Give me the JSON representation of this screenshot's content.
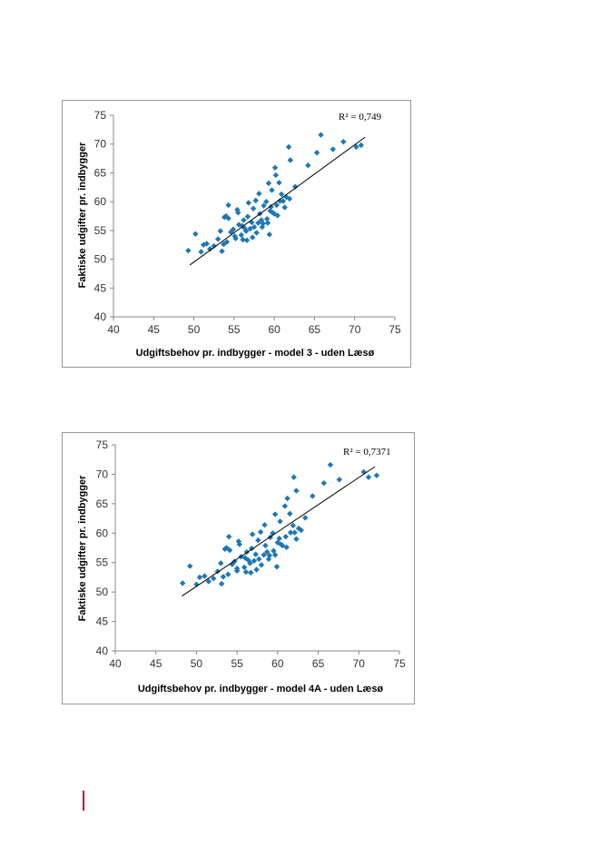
{
  "colors": {
    "points": "#1f77b4",
    "trendline": "#000000",
    "axis": "#888888",
    "accent": "#c0121b"
  },
  "chart_data": [
    {
      "type": "scatter",
      "title": "",
      "xlabel": "Udgiftsbehov pr. indbygger - model 3 - uden Læsø",
      "ylabel": "Faktiske udgifter pr. indbygger",
      "annotation": "R² = 0,749",
      "xlim": [
        40,
        75
      ],
      "ylim": [
        40,
        75
      ],
      "x_ticks": [
        "40",
        "45",
        "50",
        "55",
        "60",
        "65",
        "70",
        "75"
      ],
      "y_ticks": [
        "40",
        "45",
        "50",
        "55",
        "60",
        "65",
        "70",
        "75"
      ],
      "trendline": {
        "x": [
          49.5,
          71.3
        ],
        "y": [
          49.0,
          71.2
        ]
      },
      "grid": false,
      "points": [
        [
          49.3,
          51.5
        ],
        [
          50.2,
          54.4
        ],
        [
          50.9,
          51.3
        ],
        [
          51.2,
          52.5
        ],
        [
          51.6,
          52.7
        ],
        [
          52.0,
          51.8
        ],
        [
          52.5,
          52.3
        ],
        [
          53.0,
          53.5
        ],
        [
          53.3,
          54.9
        ],
        [
          53.7,
          52.6
        ],
        [
          53.5,
          51.4
        ],
        [
          53.8,
          57.3
        ],
        [
          54.0,
          57.5
        ],
        [
          54.3,
          57.1
        ],
        [
          54.3,
          59.4
        ],
        [
          54.1,
          53.0
        ],
        [
          54.6,
          54.7
        ],
        [
          54.9,
          55.2
        ],
        [
          55.1,
          54.0
        ],
        [
          55.2,
          53.6
        ],
        [
          55.6,
          56.0
        ],
        [
          55.5,
          58.1
        ],
        [
          55.4,
          58.6
        ],
        [
          56.0,
          55.8
        ],
        [
          55.9,
          54.2
        ],
        [
          56.1,
          53.4
        ],
        [
          56.2,
          56.8
        ],
        [
          56.3,
          55.4
        ],
        [
          56.5,
          54.9
        ],
        [
          56.6,
          53.3
        ],
        [
          56.7,
          57.4
        ],
        [
          56.8,
          59.8
        ],
        [
          57.0,
          55.3
        ],
        [
          57.2,
          56.4
        ],
        [
          57.3,
          53.8
        ],
        [
          57.4,
          58.8
        ],
        [
          57.5,
          55.6
        ],
        [
          57.7,
          60.2
        ],
        [
          57.8,
          54.6
        ],
        [
          58.0,
          56.3
        ],
        [
          58.1,
          61.4
        ],
        [
          58.2,
          57.9
        ],
        [
          58.4,
          56.8
        ],
        [
          58.5,
          55.6
        ],
        [
          58.6,
          56.2
        ],
        [
          58.7,
          59.3
        ],
        [
          59.0,
          60.0
        ],
        [
          59.1,
          57.0
        ],
        [
          59.2,
          56.3
        ],
        [
          59.3,
          63.2
        ],
        [
          59.4,
          54.3
        ],
        [
          59.5,
          58.4
        ],
        [
          59.6,
          59.1
        ],
        [
          59.7,
          62.0
        ],
        [
          59.8,
          58.1
        ],
        [
          60.0,
          57.9
        ],
        [
          60.1,
          65.9
        ],
        [
          60.2,
          64.6
        ],
        [
          60.3,
          59.4
        ],
        [
          60.4,
          57.6
        ],
        [
          60.6,
          63.3
        ],
        [
          60.7,
          60.1
        ],
        [
          60.9,
          61.3
        ],
        [
          61.1,
          60.1
        ],
        [
          61.3,
          59.0
        ],
        [
          61.5,
          60.8
        ],
        [
          61.8,
          69.5
        ],
        [
          61.9,
          60.5
        ],
        [
          62.0,
          67.2
        ],
        [
          62.6,
          62.6
        ],
        [
          64.2,
          66.3
        ],
        [
          65.3,
          68.5
        ],
        [
          65.8,
          71.6
        ],
        [
          67.3,
          69.1
        ],
        [
          68.6,
          70.4
        ],
        [
          70.2,
          69.5
        ],
        [
          70.8,
          69.8
        ]
      ]
    },
    {
      "type": "scatter",
      "title": "",
      "xlabel": "Udgiftsbehov pr. indbygger - model 4A - uden Læsø",
      "ylabel": "Faktiske udgifter pr. indbygger",
      "annotation": "R² = 0,7371",
      "xlim": [
        40,
        75
      ],
      "ylim": [
        40,
        75
      ],
      "x_ticks": [
        "40",
        "45",
        "50",
        "55",
        "60",
        "65",
        "70",
        "75"
      ],
      "y_ticks": [
        "40",
        "45",
        "50",
        "55",
        "60",
        "65",
        "70",
        "75"
      ],
      "trendline": {
        "x": [
          48.2,
          72.0
        ],
        "y": [
          49.3,
          71.3
        ]
      },
      "grid": false,
      "points": [
        [
          48.3,
          51.5
        ],
        [
          49.2,
          54.4
        ],
        [
          50.0,
          51.3
        ],
        [
          50.4,
          52.5
        ],
        [
          51.0,
          52.7
        ],
        [
          51.5,
          51.8
        ],
        [
          52.1,
          52.3
        ],
        [
          52.6,
          53.5
        ],
        [
          53.0,
          54.9
        ],
        [
          53.3,
          52.6
        ],
        [
          53.1,
          51.4
        ],
        [
          53.5,
          57.3
        ],
        [
          53.7,
          57.5
        ],
        [
          54.1,
          57.1
        ],
        [
          54.0,
          59.4
        ],
        [
          53.9,
          53.0
        ],
        [
          54.4,
          54.7
        ],
        [
          54.7,
          55.2
        ],
        [
          55.0,
          54.0
        ],
        [
          55.0,
          53.6
        ],
        [
          55.5,
          56.0
        ],
        [
          55.3,
          58.1
        ],
        [
          55.2,
          58.6
        ],
        [
          56.0,
          55.8
        ],
        [
          55.9,
          54.2
        ],
        [
          56.1,
          53.4
        ],
        [
          56.2,
          56.8
        ],
        [
          56.4,
          55.4
        ],
        [
          56.6,
          54.9
        ],
        [
          56.7,
          53.3
        ],
        [
          56.8,
          57.4
        ],
        [
          56.9,
          59.8
        ],
        [
          57.1,
          55.3
        ],
        [
          57.3,
          56.4
        ],
        [
          57.4,
          53.8
        ],
        [
          57.6,
          58.8
        ],
        [
          57.7,
          55.6
        ],
        [
          57.9,
          60.2
        ],
        [
          58.0,
          54.6
        ],
        [
          58.3,
          56.3
        ],
        [
          58.4,
          61.4
        ],
        [
          58.5,
          57.9
        ],
        [
          58.7,
          56.8
        ],
        [
          58.9,
          55.6
        ],
        [
          59.0,
          56.2
        ],
        [
          59.1,
          59.3
        ],
        [
          59.4,
          60.0
        ],
        [
          59.5,
          57.0
        ],
        [
          59.7,
          56.3
        ],
        [
          59.7,
          63.2
        ],
        [
          59.9,
          54.3
        ],
        [
          60.0,
          58.4
        ],
        [
          60.2,
          59.1
        ],
        [
          60.3,
          62.0
        ],
        [
          60.4,
          58.1
        ],
        [
          60.6,
          57.9
        ],
        [
          61.2,
          65.9
        ],
        [
          60.9,
          64.6
        ],
        [
          61.0,
          59.4
        ],
        [
          61.1,
          57.6
        ],
        [
          61.5,
          63.3
        ],
        [
          61.6,
          60.1
        ],
        [
          61.9,
          61.3
        ],
        [
          62.1,
          60.1
        ],
        [
          62.3,
          59.0
        ],
        [
          62.6,
          60.8
        ],
        [
          62.0,
          69.5
        ],
        [
          62.9,
          60.5
        ],
        [
          62.3,
          67.2
        ],
        [
          63.4,
          62.6
        ],
        [
          64.3,
          66.3
        ],
        [
          65.7,
          68.5
        ],
        [
          66.5,
          71.6
        ],
        [
          67.6,
          69.1
        ],
        [
          70.6,
          70.4
        ],
        [
          71.2,
          69.5
        ],
        [
          72.2,
          69.8
        ]
      ]
    }
  ]
}
